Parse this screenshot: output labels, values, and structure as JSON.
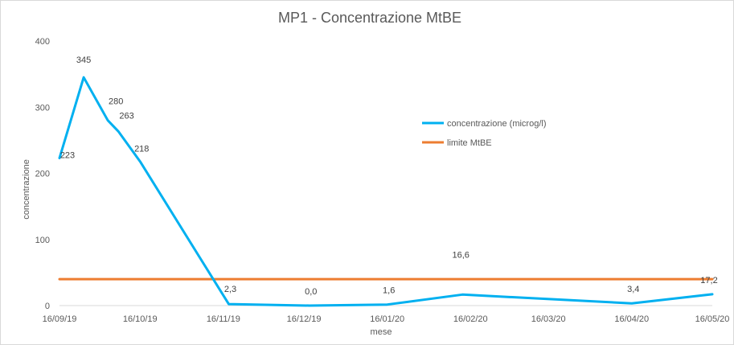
{
  "chart_data": {
    "type": "line",
    "title": "MP1 - Concentrazione MtBE",
    "xlabel": "mese",
    "ylabel": "concentrazione",
    "ylim": [
      0,
      400
    ],
    "yticks": [
      0,
      100,
      200,
      300,
      400
    ],
    "xlim": [
      "2019-09-16",
      "2020-05-16"
    ],
    "xtick_labels": [
      "16/09/19",
      "16/10/19",
      "16/11/19",
      "16/12/19",
      "16/01/20",
      "16/02/20",
      "16/03/20",
      "16/04/20",
      "16/05/20"
    ],
    "grid": false,
    "legend_position": "right",
    "series": [
      {
        "name": "concentrazione (microg/l)",
        "color": "#00b0f0",
        "points": [
          {
            "x": "2019-09-16",
            "y": 223,
            "label": "223"
          },
          {
            "x": "2019-09-25",
            "y": 345,
            "label": "345"
          },
          {
            "x": "2019-10-04",
            "y": 280,
            "label": "280"
          },
          {
            "x": "2019-10-08",
            "y": 263,
            "label": "263"
          },
          {
            "x": "2019-10-16",
            "y": 218,
            "label": "218"
          },
          {
            "x": "2019-11-18",
            "y": 2.3,
            "label": "2,3"
          },
          {
            "x": "2019-12-18",
            "y": 0.0,
            "label": "0,0"
          },
          {
            "x": "2020-01-16",
            "y": 1.6,
            "label": "1,6"
          },
          {
            "x": "2020-02-13",
            "y": 16.6,
            "label": "16,6"
          },
          {
            "x": "2020-04-16",
            "y": 3.4,
            "label": "3,4"
          },
          {
            "x": "2020-05-16",
            "y": 17.2,
            "label": "17,2"
          }
        ]
      },
      {
        "name": "limite MtBE",
        "color": "#ed7d31",
        "points": [
          {
            "x": "2019-09-16",
            "y": 40
          },
          {
            "x": "2020-05-16",
            "y": 40
          }
        ]
      }
    ]
  }
}
